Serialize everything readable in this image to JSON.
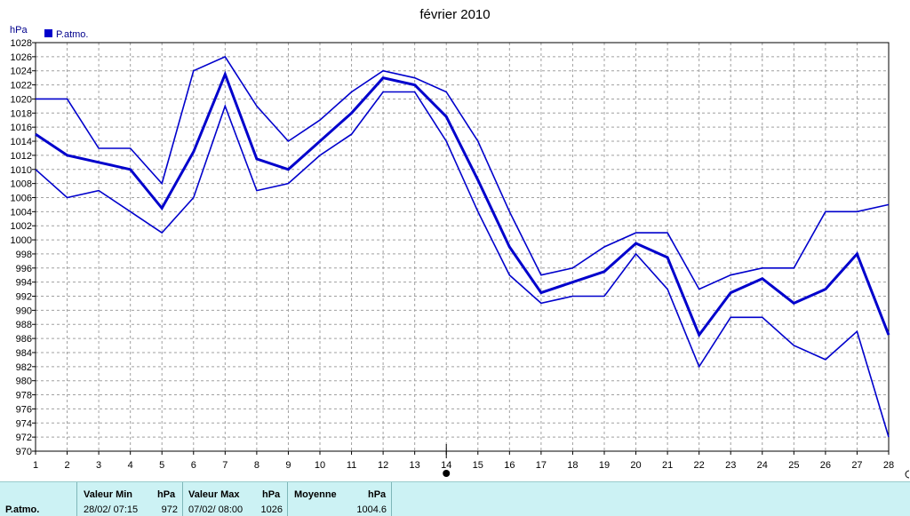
{
  "chart_data": {
    "type": "line",
    "title": "février 2010",
    "ylabel": "hPa",
    "legend": {
      "label": "P.atmo.",
      "placement": "top-left",
      "color": "#0000cc"
    },
    "x": [
      1,
      2,
      3,
      4,
      5,
      6,
      7,
      8,
      9,
      10,
      11,
      12,
      13,
      14,
      15,
      16,
      17,
      18,
      19,
      20,
      21,
      22,
      23,
      24,
      25,
      26,
      27,
      28
    ],
    "ylim": [
      970,
      1028
    ],
    "yticks": [
      970,
      972,
      974,
      976,
      978,
      980,
      982,
      984,
      986,
      988,
      990,
      992,
      994,
      996,
      998,
      1000,
      1002,
      1004,
      1006,
      1008,
      1010,
      1012,
      1014,
      1016,
      1018,
      1020,
      1022,
      1024,
      1026,
      1028
    ],
    "grid": true,
    "series": [
      {
        "role": "max",
        "color": "#0000cc",
        "values": [
          1020,
          1020,
          1013,
          1013,
          1008,
          1024,
          1026,
          1019,
          1014,
          1017,
          1021,
          1024,
          1023,
          1021,
          1014,
          1004,
          995,
          996,
          999,
          1001,
          1001,
          993,
          995,
          996,
          996,
          1004,
          1004,
          1005
        ]
      },
      {
        "role": "mean",
        "color": "#0000cc",
        "values": [
          1015,
          1012,
          1011,
          1010,
          1004.5,
          1012.5,
          1023.5,
          1011.5,
          1010,
          1014,
          1018,
          1023,
          1022,
          1017.5,
          1008.5,
          999,
          992.5,
          994,
          995.5,
          999.5,
          997.5,
          986.5,
          992.5,
          994.5,
          991,
          993,
          998,
          986.5
        ]
      },
      {
        "role": "min",
        "color": "#0000cc",
        "values": [
          1010,
          1006,
          1007,
          1004,
          1001,
          1006,
          1019,
          1007,
          1008,
          1012,
          1015,
          1021,
          1021,
          1014,
          1004,
          995,
          991,
          992,
          992,
          998,
          993,
          982,
          989,
          989,
          985,
          983,
          987,
          972
        ]
      }
    ],
    "marker_x": 14
  },
  "stats": {
    "row_label": "P.atmo.",
    "min": {
      "header": "Valeur Min",
      "unit": "hPa",
      "datetime": "28/02/  07:15",
      "value": "972"
    },
    "max": {
      "header": "Valeur Max",
      "unit": "hPa",
      "datetime": "07/02/  08:00",
      "value": "1026"
    },
    "mean": {
      "header": "Moyenne",
      "unit": "hPa",
      "value": "1004.6"
    }
  }
}
